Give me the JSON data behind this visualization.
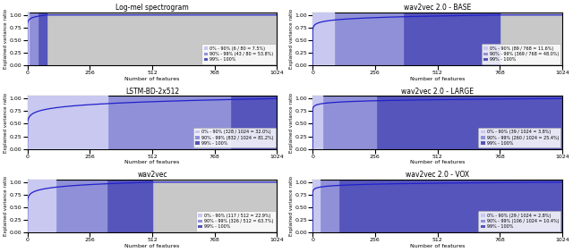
{
  "subplots": [
    {
      "title": "Log-mel spectrogram",
      "max_features": 80,
      "x_max": 1024,
      "p90_feat": 6,
      "p99_feat": 43,
      "total_feat": 80,
      "legend_lines": [
        "0% - 90% (6 / 80 = 7.5%)",
        "90% - 99% (43 / 80 = 53.8%)",
        "99% - 100%"
      ]
    },
    {
      "title": "wav2vec 2.0 - BASE",
      "max_features": 768,
      "x_max": 1024,
      "p90_feat": 89,
      "p99_feat": 369,
      "total_feat": 768,
      "legend_lines": [
        "0% - 90% (89 / 768 = 11.6%)",
        "90% - 99% (369 / 768 = 48.0%)",
        "99% - 100%"
      ]
    },
    {
      "title": "LSTM-BD-2x512",
      "max_features": 1024,
      "x_max": 1024,
      "p90_feat": 328,
      "p99_feat": 832,
      "total_feat": 1024,
      "legend_lines": [
        "0% - 90% (328 / 1024 = 32.0%)",
        "90% - 99% (832 / 1024 = 81.2%)",
        "99% - 100%"
      ]
    },
    {
      "title": "wav2vec 2.0 - LARGE",
      "max_features": 1024,
      "x_max": 1024,
      "p90_feat": 39,
      "p99_feat": 260,
      "total_feat": 1024,
      "legend_lines": [
        "0% - 90% (39 / 1024 = 3.8%)",
        "90% - 99% (260 / 1024 = 25.4%)",
        "99% - 100%"
      ]
    },
    {
      "title": "wav2vec",
      "max_features": 512,
      "x_max": 1024,
      "p90_feat": 117,
      "p99_feat": 326,
      "total_feat": 512,
      "legend_lines": [
        "0% - 90% (117 / 512 = 22.9%)",
        "90% - 99% (326 / 512 = 63.7%)",
        "99% - 100%"
      ]
    },
    {
      "title": "wav2vec 2.0 - VOX",
      "max_features": 1024,
      "x_max": 1024,
      "p90_feat": 29,
      "p99_feat": 106,
      "total_feat": 1024,
      "legend_lines": [
        "0% - 90% (29 / 1024 = 2.8%)",
        "90% - 99% (106 / 1024 = 10.4%)",
        "99% - 100%"
      ]
    }
  ],
  "color_90": "#c8c8f0",
  "color_99": "#9090d8",
  "color_100": "#5555bb",
  "color_gray": "#c8c8c8",
  "curve_color": "#2020cc",
  "xlabel": "Number of features",
  "ylabel": "Explained variance ratio",
  "xticks": [
    0,
    256,
    512,
    768,
    1024
  ],
  "yticks": [
    0.0,
    0.25,
    0.5,
    0.75,
    1.0
  ],
  "curve_alpha": 0.35
}
